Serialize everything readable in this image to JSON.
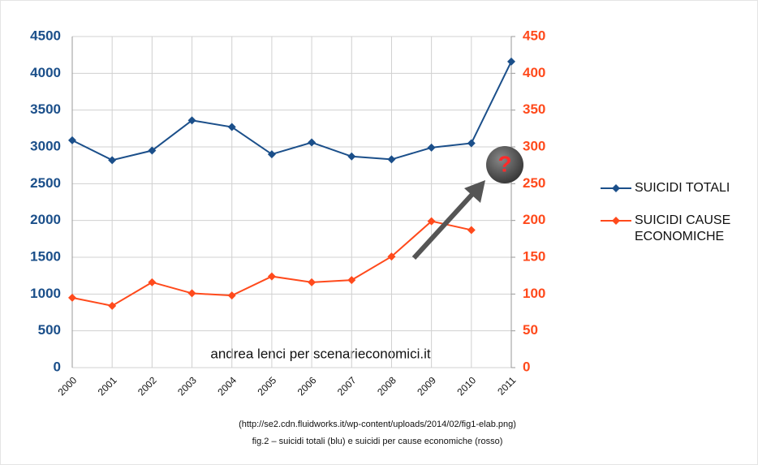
{
  "chart_data": {
    "type": "line",
    "categories": [
      "2000",
      "2001",
      "2002",
      "2003",
      "2004",
      "2005",
      "2006",
      "2007",
      "2008",
      "2009",
      "2010",
      "2011"
    ],
    "series": [
      {
        "name": "SUICIDI TOTALI",
        "color": "#1b4f8a",
        "values": [
          3090,
          2820,
          2950,
          3360,
          3270,
          2900,
          3060,
          2870,
          2830,
          2990,
          3050,
          4160
        ]
      },
      {
        "name": "SUICIDI CAUSE ECONOMICHE",
        "color": "#ff4a1c",
        "axis": "y2",
        "values": [
          95,
          84,
          116,
          101,
          98,
          124,
          116,
          119,
          151,
          199,
          187,
          null
        ]
      }
    ],
    "ylim": [
      0,
      4500
    ],
    "yticks": [
      0,
      500,
      1000,
      1500,
      2000,
      2500,
      3000,
      3500,
      4000,
      4500
    ],
    "y2lim": [
      0,
      450
    ],
    "y2ticks": [
      0,
      50,
      100,
      150,
      200,
      250,
      300,
      350,
      400,
      450
    ],
    "grid": true,
    "legend": "right",
    "annotations": [
      "?"
    ],
    "watermark": "andrea lenci per scenarieconomici.it",
    "source": "(http://se2.cdn.fluidworks.it/wp-content/uploads/2014/02/fig1-elab.png)",
    "caption": "fig.2 – suicidi totali (blu) e suicidi per cause economiche (rosso)"
  }
}
